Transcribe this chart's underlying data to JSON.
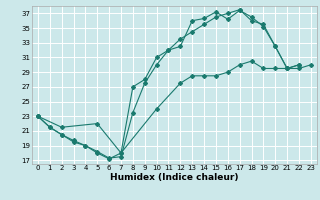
{
  "xlabel": "Humidex (Indice chaleur)",
  "bg_color": "#cce8ea",
  "grid_color": "#ffffff",
  "line_color": "#1a7a6e",
  "xlim": [
    -0.5,
    23.5
  ],
  "ylim": [
    16.5,
    38
  ],
  "xticks": [
    0,
    1,
    2,
    3,
    4,
    5,
    6,
    7,
    8,
    9,
    10,
    11,
    12,
    13,
    14,
    15,
    16,
    17,
    18,
    19,
    20,
    21,
    22,
    23
  ],
  "yticks": [
    17,
    19,
    21,
    23,
    25,
    27,
    29,
    31,
    33,
    35,
    37
  ],
  "line1": [
    [
      0,
      23
    ],
    [
      1,
      21.5
    ],
    [
      2,
      20.5
    ],
    [
      3,
      19.5
    ],
    [
      4,
      19
    ],
    [
      5,
      18.2
    ],
    [
      6,
      17.3
    ],
    [
      7,
      17.5
    ],
    [
      8,
      23.5
    ],
    [
      9,
      27.5
    ],
    [
      10,
      30
    ],
    [
      11,
      32
    ],
    [
      12,
      32.5
    ],
    [
      13,
      36
    ],
    [
      14,
      36.3
    ],
    [
      15,
      37.2
    ],
    [
      16,
      36.2
    ],
    [
      17,
      37.4
    ],
    [
      18,
      36.5
    ],
    [
      19,
      35.2
    ],
    [
      20,
      32.5
    ],
    [
      21,
      29.5
    ],
    [
      22,
      30
    ]
  ],
  "line2": [
    [
      0,
      23
    ],
    [
      1,
      21.5
    ],
    [
      2,
      20.5
    ],
    [
      3,
      19.7
    ],
    [
      4,
      19
    ],
    [
      5,
      18
    ],
    [
      6,
      17.2
    ],
    [
      7,
      18
    ],
    [
      8,
      27
    ],
    [
      9,
      28
    ],
    [
      10,
      31
    ],
    [
      11,
      32
    ],
    [
      12,
      33.5
    ],
    [
      13,
      34.5
    ],
    [
      14,
      35.5
    ],
    [
      15,
      36.5
    ],
    [
      16,
      37
    ],
    [
      17,
      37.5
    ],
    [
      18,
      36
    ],
    [
      19,
      35.5
    ],
    [
      20,
      32.5
    ],
    [
      21,
      29.5
    ],
    [
      22,
      30
    ]
  ],
  "line3": [
    [
      0,
      23
    ],
    [
      2,
      21.5
    ],
    [
      5,
      22
    ],
    [
      7,
      18
    ],
    [
      10,
      24
    ],
    [
      12,
      27.5
    ],
    [
      13,
      28.5
    ],
    [
      14,
      28.5
    ],
    [
      15,
      28.5
    ],
    [
      16,
      29
    ],
    [
      17,
      30
    ],
    [
      18,
      30.5
    ],
    [
      19,
      29.5
    ],
    [
      20,
      29.5
    ],
    [
      21,
      29.5
    ],
    [
      22,
      29.5
    ],
    [
      23,
      30
    ]
  ]
}
